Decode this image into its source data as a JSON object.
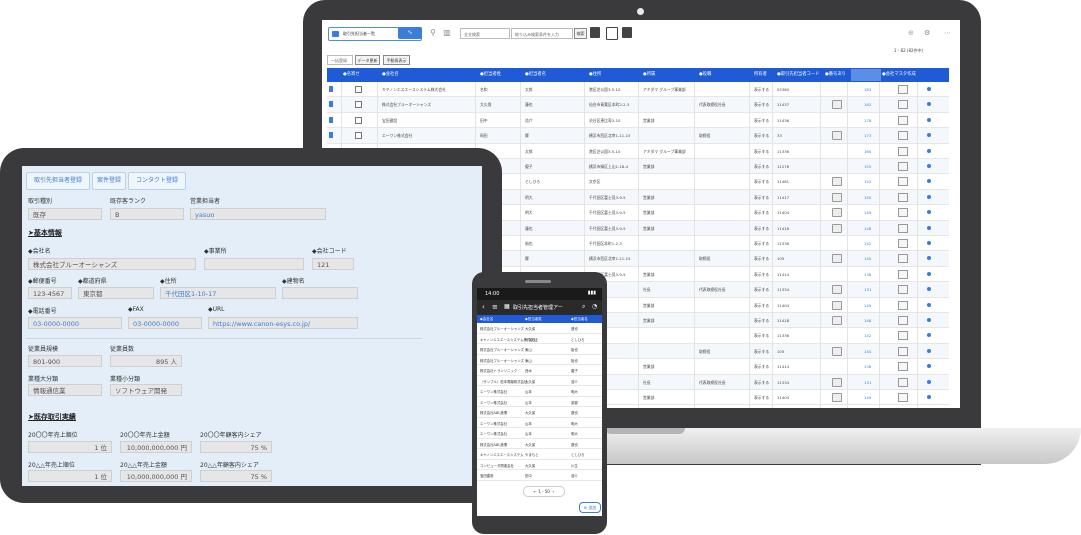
{
  "laptop": {
    "toolbar": {
      "view_select": "取引先担当者一覧",
      "search_select": "全文検索",
      "search_placeholder": "絞り込み検索条件を入力",
      "search_button": "検索",
      "paging": "1 - 82  (82件中)",
      "bulk_select": "一括登録",
      "bulk_button1": "データ更新",
      "bulk_button2": "手動再表示"
    },
    "columns": [
      "",
      "●名寄せ",
      "●会社名",
      "●担当者姓",
      "●担当者名",
      "●住所",
      "●所属",
      "●役職",
      "所有者",
      "●取引先担当者コード",
      "●番号あり",
      "",
      "●会社マスタ作成"
    ],
    "rows": [
      {
        "company": "キヤノンエスエースシステム株式会社",
        "last": "名和",
        "first": "太郎",
        "addr": "港区芝公園3-5-10",
        "dept": "アミダマ グループ事業部",
        "title": "",
        "owner": "表示する",
        "code": "55360",
        "cam": false,
        "num": "183"
      },
      {
        "company": "株式会社ブルーオーシャンズ",
        "last": "大久保",
        "first": "蓮也",
        "addr": "仙台市青葉区本町2-2-3",
        "dept": "",
        "title": "代表取締役社長",
        "owner": "表示する",
        "code": "11437",
        "cam": true,
        "num": "182"
      },
      {
        "company": "宝田建設",
        "last": "田中",
        "first": "浩介",
        "addr": "渋谷区恵比寿3-10",
        "dept": "営業部",
        "title": "",
        "owner": "表示する",
        "code": "11436",
        "cam": false,
        "num": "178"
      },
      {
        "company": "エーワン株式会社",
        "last": "岡田",
        "first": "響",
        "addr": "横浜市西区北幸1-11-15",
        "dept": "",
        "title": "取締役",
        "owner": "表示する",
        "code": "33",
        "cam": true,
        "num": "173"
      },
      {
        "company": "",
        "last": "",
        "first": "太郎",
        "addr": "港区芝公園3-5-10",
        "dept": "アミダマ グループ事業部",
        "title": "",
        "owner": "表示する",
        "code": "11336",
        "cam": false,
        "num": "160"
      },
      {
        "company": "",
        "last": "",
        "first": "優子",
        "addr": "横浜市緑区上山1-18-4",
        "dept": "営業部",
        "title": "",
        "owner": "表示する",
        "code": "11276",
        "cam": false,
        "num": "155"
      },
      {
        "company": "",
        "last": "",
        "first": "としひろ",
        "addr": "文京区",
        "dept": "",
        "title": "",
        "owner": "表示する",
        "code": "11481",
        "cam": true,
        "num": "152"
      },
      {
        "company": "",
        "last": "",
        "first": "明大",
        "addr": "千代田区富士見3-9-5",
        "dept": "営業部",
        "title": "",
        "owner": "表示する",
        "code": "11417",
        "cam": true,
        "num": "150"
      },
      {
        "company": "",
        "last": "",
        "first": "明大",
        "addr": "千代田区富士見3-9-5",
        "dept": "営業部",
        "title": "",
        "owner": "表示する",
        "code": "11404",
        "cam": true,
        "num": "149"
      },
      {
        "company": "",
        "last": "",
        "first": "蓮也",
        "addr": "千代田区富士見3-9-5",
        "dept": "営業部",
        "title": "",
        "owner": "表示する",
        "code": "11418",
        "cam": true,
        "num": "148"
      },
      {
        "company": "",
        "last": "",
        "first": "裕也",
        "addr": "千代田区本町1-2-3",
        "dept": "",
        "title": "",
        "owner": "表示する",
        "code": "11336",
        "cam": false,
        "num": "142"
      },
      {
        "company": "",
        "last": "",
        "first": "響",
        "addr": "横浜市西区北幸1-11-15",
        "dept": "",
        "title": "取締役",
        "owner": "表示する",
        "code": "105",
        "cam": true,
        "num": "140"
      },
      {
        "company": "",
        "last": "",
        "first": "宗佑",
        "addr": "千代田区富士見3-9-5",
        "dept": "営業部",
        "title": "",
        "owner": "表示する",
        "code": "11414",
        "cam": false,
        "num": "138"
      },
      {
        "company": "",
        "last": "",
        "first": "",
        "addr": "",
        "dept": "社長",
        "title": "代表取締役社長",
        "owner": "表示する",
        "code": "11334",
        "cam": true,
        "num": "131"
      },
      {
        "company": "",
        "last": "",
        "first": "",
        "addr": "",
        "dept": "営業部",
        "title": "",
        "owner": "表示する",
        "code": "11404",
        "cam": true,
        "num": "149"
      },
      {
        "company": "",
        "last": "",
        "first": "",
        "addr": "",
        "dept": "営業部",
        "title": "",
        "owner": "表示する",
        "code": "11418",
        "cam": true,
        "num": "148"
      },
      {
        "company": "",
        "last": "",
        "first": "",
        "addr": "",
        "dept": "",
        "title": "",
        "owner": "表示する",
        "code": "11336",
        "cam": false,
        "num": "142"
      },
      {
        "company": "",
        "last": "",
        "first": "",
        "addr": "",
        "dept": "",
        "title": "取締役",
        "owner": "表示する",
        "code": "105",
        "cam": true,
        "num": "140"
      },
      {
        "company": "",
        "last": "",
        "first": "",
        "addr": "",
        "dept": "営業部",
        "title": "",
        "owner": "表示する",
        "code": "11414",
        "cam": false,
        "num": "138"
      },
      {
        "company": "",
        "last": "",
        "first": "",
        "addr": "",
        "dept": "社長",
        "title": "代表取締役社長",
        "owner": "表示する",
        "code": "11334",
        "cam": true,
        "num": "131"
      },
      {
        "company": "",
        "last": "",
        "first": "",
        "addr": "",
        "dept": "営業部",
        "title": "",
        "owner": "表示する",
        "code": "11404",
        "cam": true,
        "num": "149"
      }
    ]
  },
  "tablet": {
    "tabs": [
      "取引先担当者登録",
      "案件登録",
      "コンタクト登録"
    ],
    "labels": {
      "type": "取引種別",
      "rank": "既存客ランク",
      "sales_rep": "営業担当者",
      "basic": "➤基本情報",
      "company": "◆会社名",
      "office": "◆事業所",
      "code": "◆会社コード",
      "zip": "◆郵便番号",
      "pref": "◆都道府県",
      "addr": "◆住所",
      "bldg": "◆建物名",
      "tel": "◆電話番号",
      "fax": "◆FAX",
      "url": "◆URL",
      "employees_scale": "従業員規模",
      "employees": "従業員数",
      "ind_major": "業種大分類",
      "ind_minor": "業種小分類",
      "trade": "➤既存取引実績",
      "r1": "20〇〇年売上順位",
      "r2": "20〇〇年売上金額",
      "r3": "20〇〇年顧客内シェア",
      "s1": "20△△年売上順位",
      "s2": "20△△年売上金額",
      "s3": "20△△年顧客内シェア"
    },
    "values": {
      "type": "既存",
      "rank": "B",
      "sales_rep": "yasuo",
      "company": "株式会社ブルーオーシャンズ",
      "office": "",
      "code": "121",
      "zip": "123-4567",
      "pref": "東京都",
      "addr": "千代田区1-10-17",
      "bldg": "",
      "tel": "03-0000-0000",
      "fax": "03-0000-0000",
      "url": "https://www.canon-esys.co.jp/",
      "employees_scale": "801-900",
      "employees": "895 人",
      "ind_major": "情報通信業",
      "ind_minor": "ソフトウェア開発",
      "r1": "1 位",
      "r2": "10,000,000,000 円",
      "r3": "75 %",
      "s1": "1 位",
      "s2": "10,000,000,000 円",
      "s3": "75 %"
    }
  },
  "phone": {
    "time": "14:00",
    "title": "取引先担当者管理アー",
    "columns": [
      "◆会社名",
      "◆担当者姓",
      "◆担当者名"
    ],
    "rows": [
      [
        "株式会社ブルーオーシャンズ",
        "大久保",
        "蓮也"
      ],
      [
        "キヤノンエスエースシステム株式会社",
        "やまもと",
        "としひろ"
      ],
      [
        "株式会社ブルーオーシャンズ",
        "東山",
        "裕也"
      ],
      [
        "株式会社ブルーオーシャンズ",
        "東山",
        "裕也"
      ],
      [
        "株式会社トランソニック",
        "西木",
        "唐子"
      ],
      [
        "（サンプル）松本電機株式会社",
        "大久保",
        "浩介"
      ],
      [
        "エーワン株式会社",
        "山本",
        "明大"
      ],
      [
        "エーワン株式会社",
        "山本",
        "英樹"
      ],
      [
        "株式会社ABC産業",
        "大久保",
        "蓮也"
      ],
      [
        "エーワン株式会社",
        "山本",
        "明大"
      ],
      [
        "エーワン株式会社",
        "山本",
        "明大"
      ],
      [
        "株式会社ABC産業",
        "大久保",
        "蓮也"
      ],
      [
        "キヤノンエスエースシステム",
        "やまもと",
        "としひろ"
      ],
      [
        "コンピュータ関連会社",
        "大久保",
        "川生"
      ],
      [
        "宝田建設",
        "田中",
        "浩介"
      ]
    ],
    "pager": "1 - 50",
    "add_button": "追加"
  }
}
